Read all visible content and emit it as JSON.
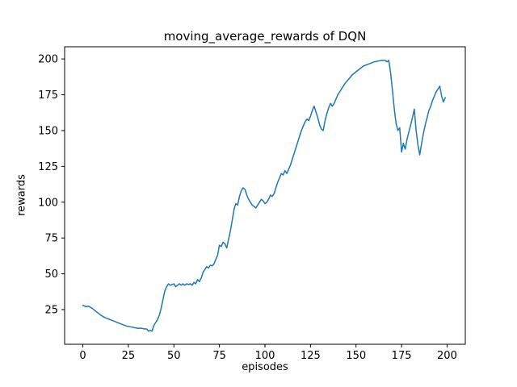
{
  "chart_data": {
    "type": "line",
    "title": "moving_average_rewards of DQN",
    "xlabel": "episodes",
    "ylabel": "rewards",
    "line_color": "#1f77b4",
    "grid": false,
    "legend": false,
    "xlim": [
      -10,
      210
    ],
    "ylim": [
      0.8,
      208.5
    ],
    "x_ticks": [
      0,
      25,
      50,
      75,
      100,
      125,
      150,
      175,
      200
    ],
    "y_ticks": [
      25,
      50,
      75,
      100,
      125,
      150,
      175,
      200
    ],
    "series_name": "moving_average_rewards",
    "points": [
      [
        0,
        28
      ],
      [
        2,
        27
      ],
      [
        3,
        27.5
      ],
      [
        5,
        26
      ],
      [
        7,
        24
      ],
      [
        9,
        22
      ],
      [
        10,
        21
      ],
      [
        12,
        19.5
      ],
      [
        14,
        18.5
      ],
      [
        16,
        17.5
      ],
      [
        18,
        16.5
      ],
      [
        20,
        15.5
      ],
      [
        22,
        14.5
      ],
      [
        24,
        13.5
      ],
      [
        26,
        13
      ],
      [
        28,
        12.5
      ],
      [
        30,
        12
      ],
      [
        32,
        12
      ],
      [
        34,
        11.5
      ],
      [
        35,
        11.5
      ],
      [
        36,
        10
      ],
      [
        37,
        10.5
      ],
      [
        38,
        10
      ],
      [
        39,
        14
      ],
      [
        40,
        16
      ],
      [
        41,
        18
      ],
      [
        42,
        21
      ],
      [
        43,
        26
      ],
      [
        44,
        32
      ],
      [
        45,
        38
      ],
      [
        46,
        41
      ],
      [
        47,
        43
      ],
      [
        48,
        42
      ],
      [
        49,
        42.5
      ],
      [
        50,
        43
      ],
      [
        51,
        41
      ],
      [
        52,
        42
      ],
      [
        53,
        43
      ],
      [
        54,
        42
      ],
      [
        55,
        43
      ],
      [
        56,
        42
      ],
      [
        57,
        43
      ],
      [
        58,
        42.5
      ],
      [
        59,
        43
      ],
      [
        60,
        42
      ],
      [
        61,
        44
      ],
      [
        62,
        43
      ],
      [
        63,
        46
      ],
      [
        64,
        44.5
      ],
      [
        65,
        47
      ],
      [
        66,
        51
      ],
      [
        67,
        53
      ],
      [
        68,
        55
      ],
      [
        69,
        54
      ],
      [
        70,
        56
      ],
      [
        71,
        55.5
      ],
      [
        72,
        57
      ],
      [
        73,
        60
      ],
      [
        74,
        63
      ],
      [
        75,
        70
      ],
      [
        76,
        69
      ],
      [
        77,
        72
      ],
      [
        78,
        71
      ],
      [
        79,
        68
      ],
      [
        80,
        74
      ],
      [
        81,
        80
      ],
      [
        82,
        87
      ],
      [
        83,
        95
      ],
      [
        84,
        99
      ],
      [
        85,
        98
      ],
      [
        86,
        104
      ],
      [
        87,
        108
      ],
      [
        88,
        110
      ],
      [
        89,
        109
      ],
      [
        90,
        105
      ],
      [
        91,
        102
      ],
      [
        92,
        100
      ],
      [
        93,
        98
      ],
      [
        94,
        97
      ],
      [
        95,
        96
      ],
      [
        96,
        98
      ],
      [
        97,
        100
      ],
      [
        98,
        102
      ],
      [
        99,
        101
      ],
      [
        100,
        99
      ],
      [
        101,
        100
      ],
      [
        102,
        102
      ],
      [
        103,
        105
      ],
      [
        104,
        104
      ],
      [
        105,
        106
      ],
      [
        106,
        110
      ],
      [
        107,
        114
      ],
      [
        108,
        117
      ],
      [
        109,
        120
      ],
      [
        110,
        119
      ],
      [
        111,
        122
      ],
      [
        112,
        120
      ],
      [
        113,
        123
      ],
      [
        114,
        126
      ],
      [
        115,
        130
      ],
      [
        116,
        134
      ],
      [
        117,
        138
      ],
      [
        118,
        142
      ],
      [
        119,
        146
      ],
      [
        120,
        150
      ],
      [
        121,
        153
      ],
      [
        122,
        156
      ],
      [
        123,
        158
      ],
      [
        124,
        157
      ],
      [
        125,
        160
      ],
      [
        126,
        164
      ],
      [
        127,
        167
      ],
      [
        128,
        163
      ],
      [
        129,
        159
      ],
      [
        130,
        154
      ],
      [
        131,
        151
      ],
      [
        132,
        150
      ],
      [
        133,
        157
      ],
      [
        134,
        162
      ],
      [
        135,
        166
      ],
      [
        136,
        169
      ],
      [
        137,
        167
      ],
      [
        138,
        169
      ],
      [
        139,
        172
      ],
      [
        140,
        175
      ],
      [
        142,
        179
      ],
      [
        144,
        183
      ],
      [
        146,
        186
      ],
      [
        148,
        189
      ],
      [
        150,
        191
      ],
      [
        152,
        193
      ],
      [
        154,
        195
      ],
      [
        156,
        196
      ],
      [
        158,
        197
      ],
      [
        160,
        198
      ],
      [
        162,
        198.5
      ],
      [
        164,
        199
      ],
      [
        166,
        199
      ],
      [
        167,
        198
      ],
      [
        168,
        199
      ],
      [
        169,
        190
      ],
      [
        170,
        178
      ],
      [
        171,
        165
      ],
      [
        172,
        155
      ],
      [
        173,
        150
      ],
      [
        174,
        152
      ],
      [
        175,
        135
      ],
      [
        176,
        141
      ],
      [
        177,
        137
      ],
      [
        178,
        144
      ],
      [
        179,
        149
      ],
      [
        180,
        154
      ],
      [
        181,
        159
      ],
      [
        182,
        165
      ],
      [
        183,
        150
      ],
      [
        184,
        140
      ],
      [
        185,
        133
      ],
      [
        186,
        141
      ],
      [
        187,
        148
      ],
      [
        188,
        154
      ],
      [
        189,
        159
      ],
      [
        190,
        164
      ],
      [
        191,
        167
      ],
      [
        192,
        171
      ],
      [
        193,
        174
      ],
      [
        194,
        177
      ],
      [
        195,
        179
      ],
      [
        196,
        181
      ],
      [
        197,
        174
      ],
      [
        198,
        170
      ],
      [
        199,
        173
      ]
    ]
  }
}
